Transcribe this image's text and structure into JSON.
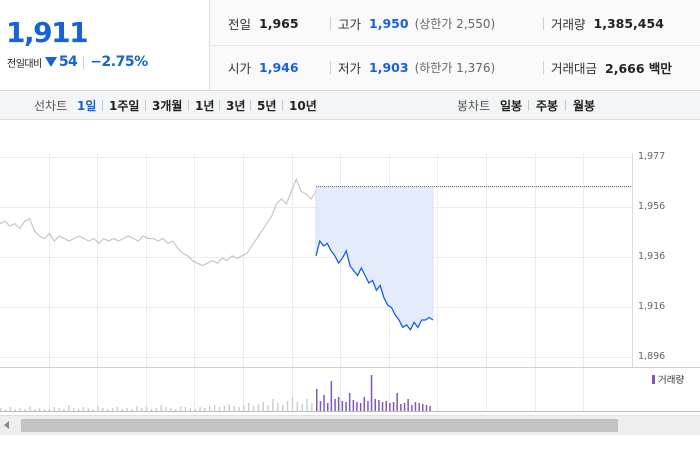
{
  "summary": {
    "price": "1,911",
    "diff_label": "전일대비",
    "diff_value": "54",
    "diff_pct": "−2.75%",
    "stats": {
      "prev_close_label": "전일",
      "prev_close": "1,965",
      "high_label": "고가",
      "high": "1,950",
      "upper_limit": "(상한가 2,550)",
      "volume_label": "거래량",
      "volume": "1,385,454",
      "open_label": "시가",
      "open": "1,946",
      "low_label": "저가",
      "low": "1,903",
      "lower_limit": "(하한가 1,376)",
      "amount_label": "거래대금",
      "amount": "2,666 백만"
    }
  },
  "period_tabs": {
    "line_label": "선차트",
    "line": [
      "1일",
      "1주일",
      "3개월",
      "1년",
      "3년",
      "5년",
      "10년"
    ],
    "active": "1일",
    "candle_label": "봉차트",
    "candle": [
      "일봉",
      "주봉",
      "월봉"
    ]
  },
  "chart_data": {
    "type": "line",
    "y_ticks": [
      "1,977",
      "1,956",
      "1,936",
      "1,916",
      "1,896"
    ],
    "ylim": [
      1896,
      1977
    ],
    "prev_close": 1965,
    "series": [
      {
        "values": [
          1950,
          1951,
          1949,
          1950,
          1948,
          1951,
          1952,
          1947,
          1945,
          1944,
          1946,
          1943,
          1945,
          1944,
          1943,
          1944,
          1945,
          1944,
          1943,
          1944,
          1942,
          1944,
          1943,
          1944,
          1943,
          1944,
          1945,
          1944,
          1943,
          1945,
          1944,
          1944,
          1943,
          1944,
          1942,
          1943,
          1940,
          1938,
          1937,
          1935,
          1934,
          1933,
          1934,
          1935,
          1934,
          1936,
          1935,
          1937,
          1936,
          1937,
          1938,
          1941,
          1944,
          1947,
          1950,
          1953,
          1958,
          1960,
          1958,
          1963,
          1968,
          1963,
          1962,
          1960,
          1963
        ]
      },
      {
        "values": [
          1937,
          1943,
          1941,
          1942,
          1939,
          1937,
          1934,
          1936,
          1939,
          1933,
          1931,
          1929,
          1932,
          1929,
          1926,
          1927,
          1923,
          1925,
          1920,
          1917,
          1916,
          1913,
          1911,
          1908,
          1909,
          1907,
          1910,
          1908,
          1911,
          1911,
          1912,
          1911
        ]
      }
    ],
    "volume_label": "거래량",
    "volume_gray": [
      3,
      2,
      4,
      2,
      3,
      2,
      5,
      2,
      3,
      2,
      2,
      4,
      3,
      2,
      6,
      3,
      2,
      4,
      3,
      2,
      5,
      3,
      2,
      3,
      4,
      2,
      3,
      2,
      5,
      3,
      4,
      2,
      3,
      6,
      4,
      3,
      2,
      5,
      4,
      3,
      2,
      4,
      3,
      5,
      6,
      4,
      5,
      7,
      5,
      4,
      6,
      8,
      5,
      7,
      9,
      6,
      12,
      8,
      6,
      10,
      14,
      9,
      7,
      12,
      8
    ],
    "volume_purple": [
      22,
      10,
      16,
      8,
      30,
      12,
      14,
      10,
      9,
      18,
      11,
      9,
      8,
      14,
      10,
      36,
      12,
      11,
      9,
      10,
      8,
      9,
      18,
      7,
      8,
      12,
      6,
      9,
      8,
      7,
      6,
      5
    ]
  },
  "colors": {
    "blue": "#1761d9",
    "gray_line": "#c6c6c6",
    "shade": "#e3ecfa",
    "volume": "#7e57c2"
  }
}
